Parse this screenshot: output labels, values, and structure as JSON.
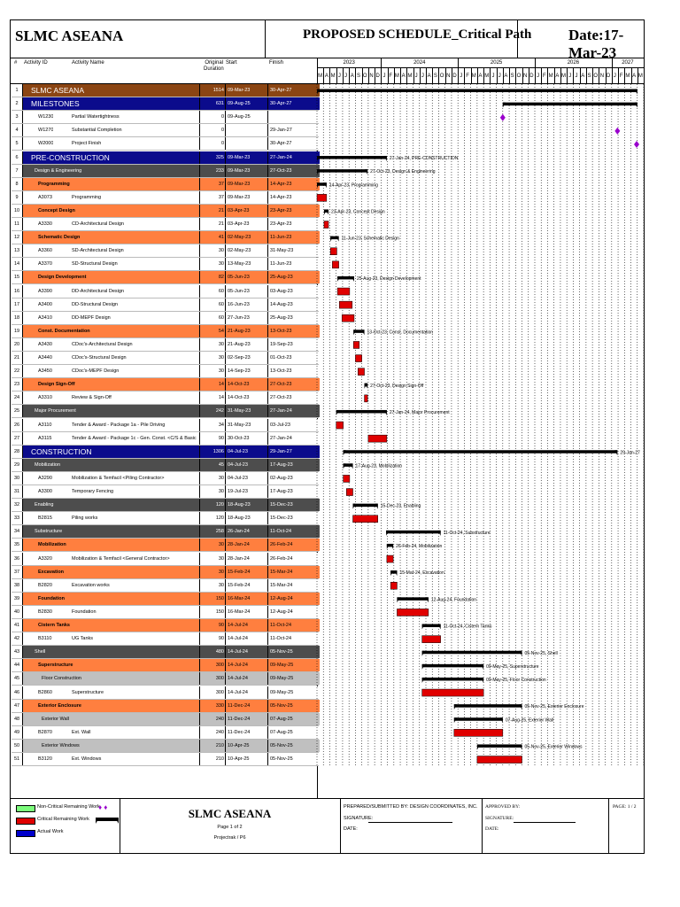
{
  "header": {
    "project": "SLMC ASEANA",
    "title": "PROPOSED SCHEDULE_Critical Path",
    "date": "Date:17-Mar-23"
  },
  "columns": {
    "num": "#",
    "id": "Activity ID",
    "name": "Activity Name",
    "dur": "Original Duration",
    "start": "Start",
    "finish": "Finish"
  },
  "timeline": {
    "years": [
      "2023",
      "2024",
      "2025",
      "2026",
      "2027"
    ],
    "months": [
      "M",
      "A",
      "M",
      "J",
      "J",
      "A",
      "S",
      "O",
      "N",
      "D",
      "J",
      "F",
      "M",
      "A",
      "M",
      "J",
      "J",
      "A",
      "S",
      "O",
      "N",
      "D",
      "J",
      "F",
      "M",
      "A",
      "M",
      "J",
      "J",
      "A",
      "S",
      "O",
      "N",
      "D",
      "J",
      "F",
      "M",
      "A",
      "M",
      "J",
      "J",
      "A",
      "S",
      "O",
      "N",
      "D",
      "J",
      "F",
      "M",
      "A",
      "M"
    ]
  },
  "colors": {
    "project": "#8B4513",
    "wbs1": "#0B0B8C",
    "wbs2": "#4D4D4D",
    "wbs3": "#FF7F3F",
    "wbs4": "#C0C0C0",
    "bar_red": "#E00000",
    "milestone": "#9900CC"
  },
  "rows": [
    {
      "n": "1",
      "id": "",
      "name": "SLMC ASEANA",
      "dur": "1514",
      "start": "09-Mar-23",
      "finish": "30-Apr-27",
      "lvl": "project",
      "type": "summary",
      "s": 0,
      "e": 50,
      "label": ""
    },
    {
      "n": "2",
      "id": "",
      "name": "MILESTONES",
      "dur": "631",
      "start": "09-Aug-25",
      "finish": "30-Apr-27",
      "lvl": "wbs1",
      "type": "summary",
      "s": 29,
      "e": 50,
      "label": ""
    },
    {
      "n": "3",
      "id": "W1230",
      "name": "Partial Watertightness",
      "dur": "0",
      "start": "09-Aug-25",
      "finish": "",
      "lvl": "task",
      "type": "milestone",
      "s": 29,
      "e": 29,
      "label": ""
    },
    {
      "n": "4",
      "id": "W1270",
      "name": "Substantial Completion",
      "dur": "0",
      "start": "",
      "finish": "29-Jan-27",
      "lvl": "task",
      "type": "milestone",
      "s": 46.9,
      "e": 46.9,
      "label": ""
    },
    {
      "n": "5",
      "id": "W2000",
      "name": "Project Finish",
      "dur": "0",
      "start": "",
      "finish": "30-Apr-27",
      "lvl": "task",
      "type": "milestone",
      "s": 49.9,
      "e": 49.9,
      "label": ""
    },
    {
      "n": "6",
      "id": "",
      "name": "PRE-CONSTRUCTION",
      "dur": "325",
      "start": "09-Mar-23",
      "finish": "27-Jan-24",
      "lvl": "wbs1",
      "type": "summary",
      "s": 0,
      "e": 10.9,
      "label": "27-Jan-24, PRE-CONSTRUCTION"
    },
    {
      "n": "7",
      "id": "",
      "name": "Design & Engineering",
      "dur": "233",
      "start": "09-Mar-23",
      "finish": "27-Oct-23",
      "lvl": "wbs2",
      "type": "summary",
      "s": 0,
      "e": 7.9,
      "label": "27-Oct-23, Design & Engineering"
    },
    {
      "n": "8",
      "id": "",
      "name": "Programming",
      "dur": "37",
      "start": "09-Mar-23",
      "finish": "14-Apr-23",
      "lvl": "wbs3",
      "type": "summary",
      "s": 0,
      "e": 1.5,
      "label": "14-Apr-23, Programming"
    },
    {
      "n": "9",
      "id": "A3073",
      "name": "Programming",
      "dur": "37",
      "start": "09-Mar-23",
      "finish": "14-Apr-23",
      "lvl": "task",
      "type": "task",
      "s": 0,
      "e": 1.5,
      "label": ""
    },
    {
      "n": "10",
      "id": "",
      "name": "Concept Design",
      "dur": "21",
      "start": "03-Apr-23",
      "finish": "23-Apr-23",
      "lvl": "wbs3",
      "type": "summary",
      "s": 1.1,
      "e": 1.8,
      "label": "23-Apr-23, Concept Design"
    },
    {
      "n": "11",
      "id": "A3330",
      "name": "CD-Architectural Design",
      "dur": "21",
      "start": "03-Apr-23",
      "finish": "23-Apr-23",
      "lvl": "task",
      "type": "task",
      "s": 1.1,
      "e": 1.8,
      "label": ""
    },
    {
      "n": "12",
      "id": "",
      "name": "Schematic Design",
      "dur": "41",
      "start": "02-May-23",
      "finish": "11-Jun-23",
      "lvl": "wbs3",
      "type": "summary",
      "s": 2.1,
      "e": 3.4,
      "label": "11-Jun-23, Schematic Design"
    },
    {
      "n": "13",
      "id": "A3360",
      "name": "SD-Architectural Design",
      "dur": "30",
      "start": "02-May-23",
      "finish": "31-May-23",
      "lvl": "task",
      "type": "task",
      "s": 2.1,
      "e": 3.1,
      "label": ""
    },
    {
      "n": "14",
      "id": "A3370",
      "name": "SD-Structural Design",
      "dur": "30",
      "start": "13-May-23",
      "finish": "11-Jun-23",
      "lvl": "task",
      "type": "task",
      "s": 2.4,
      "e": 3.4,
      "label": ""
    },
    {
      "n": "15",
      "id": "",
      "name": "Design Development",
      "dur": "82",
      "start": "05-Jun-23",
      "finish": "25-Aug-23",
      "lvl": "wbs3",
      "type": "summary",
      "s": 3.2,
      "e": 5.8,
      "label": "25-Aug-23, Design Development"
    },
    {
      "n": "16",
      "id": "A3390",
      "name": "DD-Architectural Design",
      "dur": "60",
      "start": "05-Jun-23",
      "finish": "03-Aug-23",
      "lvl": "task",
      "type": "task",
      "s": 3.2,
      "e": 5.1,
      "label": ""
    },
    {
      "n": "17",
      "id": "A3400",
      "name": "DD-Structural Design",
      "dur": "60",
      "start": "16-Jun-23",
      "finish": "14-Aug-23",
      "lvl": "task",
      "type": "task",
      "s": 3.5,
      "e": 5.5,
      "label": ""
    },
    {
      "n": "18",
      "id": "A3410",
      "name": "DD-MEPF Design",
      "dur": "60",
      "start": "27-Jun-23",
      "finish": "25-Aug-23",
      "lvl": "task",
      "type": "task",
      "s": 3.9,
      "e": 5.8,
      "label": ""
    },
    {
      "n": "19",
      "id": "",
      "name": "Const. Documentation",
      "dur": "54",
      "start": "21-Aug-23",
      "finish": "13-Oct-23",
      "lvl": "wbs3",
      "type": "summary",
      "s": 5.7,
      "e": 7.4,
      "label": "13-Oct-23, Const. Documentation"
    },
    {
      "n": "20",
      "id": "A3430",
      "name": "CDoc's-Architectural Design",
      "dur": "30",
      "start": "21-Aug-23",
      "finish": "19-Sep-23",
      "lvl": "task",
      "type": "task",
      "s": 5.7,
      "e": 6.6,
      "label": ""
    },
    {
      "n": "21",
      "id": "A3440",
      "name": "CDoc's-Structural Design",
      "dur": "30",
      "start": "02-Sep-23",
      "finish": "01-Oct-23",
      "lvl": "task",
      "type": "task",
      "s": 6.0,
      "e": 7.0,
      "label": ""
    },
    {
      "n": "22",
      "id": "A3450",
      "name": "CDoc's-MEPF Design",
      "dur": "30",
      "start": "14-Sep-23",
      "finish": "13-Oct-23",
      "lvl": "task",
      "type": "task",
      "s": 6.4,
      "e": 7.4,
      "label": ""
    },
    {
      "n": "23",
      "id": "",
      "name": "Design Sign-Off",
      "dur": "14",
      "start": "14-Oct-23",
      "finish": "27-Oct-23",
      "lvl": "wbs3",
      "type": "summary",
      "s": 7.4,
      "e": 7.9,
      "label": "27-Oct-23, Design Sign-Off"
    },
    {
      "n": "24",
      "id": "A3310",
      "name": "Review & Sign-Off",
      "dur": "14",
      "start": "14-Oct-23",
      "finish": "27-Oct-23",
      "lvl": "task",
      "type": "task",
      "s": 7.4,
      "e": 7.9,
      "label": ""
    },
    {
      "n": "25",
      "id": "",
      "name": "Major Procurement",
      "dur": "242",
      "start": "31-May-23",
      "finish": "27-Jan-24",
      "lvl": "wbs2",
      "type": "summary",
      "s": 3.0,
      "e": 10.9,
      "label": "27-Jan-24, Major Procurement"
    },
    {
      "n": "26",
      "id": "A3110",
      "name": "Tender & Award - Package 1a - Pile Driving",
      "dur": "34",
      "start": "31-May-23",
      "finish": "03-Jul-23",
      "lvl": "task",
      "type": "task",
      "s": 3.0,
      "e": 4.1,
      "label": ""
    },
    {
      "n": "27",
      "id": "A3115",
      "name": "Tender & Award - Package 1c - Gen. Const. <C/S & Basic Arch.>",
      "dur": "90",
      "start": "30-Oct-23",
      "finish": "27-Jan-24",
      "lvl": "task",
      "type": "task",
      "s": 8.0,
      "e": 10.9,
      "label": ""
    },
    {
      "n": "28",
      "id": "",
      "name": "CONSTRUCTION",
      "dur": "1306",
      "start": "04-Jul-23",
      "finish": "29-Jan-27",
      "lvl": "wbs1",
      "type": "summary",
      "s": 4.1,
      "e": 46.9,
      "label": "29-Jan-27"
    },
    {
      "n": "29",
      "id": "",
      "name": "Mobilization",
      "dur": "45",
      "start": "04-Jul-23",
      "finish": "17-Aug-23",
      "lvl": "wbs2",
      "type": "summary",
      "s": 4.1,
      "e": 5.6,
      "label": "17-Aug-23, Mobilization"
    },
    {
      "n": "30",
      "id": "A3290",
      "name": "Mobilization & Temfacil <Piling Contractor>",
      "dur": "30",
      "start": "04-Jul-23",
      "finish": "02-Aug-23",
      "lvl": "task",
      "type": "task",
      "s": 4.1,
      "e": 5.1,
      "label": ""
    },
    {
      "n": "31",
      "id": "A3300",
      "name": "Temporary Fencing",
      "dur": "30",
      "start": "19-Jul-23",
      "finish": "17-Aug-23",
      "lvl": "task",
      "type": "task",
      "s": 4.6,
      "e": 5.6,
      "label": ""
    },
    {
      "n": "32",
      "id": "",
      "name": "Enabling",
      "dur": "120",
      "start": "18-Aug-23",
      "finish": "15-Dec-23",
      "lvl": "wbs2",
      "type": "summary",
      "s": 5.6,
      "e": 9.5,
      "label": "15-Dec-23, Enabling"
    },
    {
      "n": "33",
      "id": "B2815",
      "name": "Piling works",
      "dur": "120",
      "start": "18-Aug-23",
      "finish": "15-Dec-23",
      "lvl": "task",
      "type": "task",
      "s": 5.6,
      "e": 9.5,
      "label": ""
    },
    {
      "n": "34",
      "id": "",
      "name": "Substructure",
      "dur": "258",
      "start": "26-Jan-24",
      "finish": "11-Oct-24",
      "lvl": "wbs2",
      "type": "summary",
      "s": 10.8,
      "e": 19.3,
      "label": "11-Oct-24, Substructure"
    },
    {
      "n": "35",
      "id": "",
      "name": "Mobilization",
      "dur": "30",
      "start": "28-Jan-24",
      "finish": "26-Feb-24",
      "lvl": "wbs3",
      "type": "summary",
      "s": 10.9,
      "e": 11.9,
      "label": "26-Feb-24, Mobilization"
    },
    {
      "n": "36",
      "id": "A3320",
      "name": "Mobilization & Temfacil <General Contractor>",
      "dur": "30",
      "start": "28-Jan-24",
      "finish": "26-Feb-24",
      "lvl": "task",
      "type": "task",
      "s": 10.9,
      "e": 11.9,
      "label": ""
    },
    {
      "n": "37",
      "id": "",
      "name": "Excavation",
      "dur": "30",
      "start": "15-Feb-24",
      "finish": "15-Mar-24",
      "lvl": "wbs3",
      "type": "summary",
      "s": 11.5,
      "e": 12.5,
      "label": "15-Mar-24, Excavation"
    },
    {
      "n": "38",
      "id": "B2820",
      "name": "Excavation works",
      "dur": "30",
      "start": "15-Feb-24",
      "finish": "15-Mar-24",
      "lvl": "task",
      "type": "task",
      "s": 11.5,
      "e": 12.5,
      "label": ""
    },
    {
      "n": "39",
      "id": "",
      "name": "Foundation",
      "dur": "150",
      "start": "16-Mar-24",
      "finish": "12-Aug-24",
      "lvl": "wbs3",
      "type": "summary",
      "s": 12.5,
      "e": 17.4,
      "label": "12-Aug-24, Foundation"
    },
    {
      "n": "40",
      "id": "B2830",
      "name": "Foundation",
      "dur": "150",
      "start": "16-Mar-24",
      "finish": "12-Aug-24",
      "lvl": "task",
      "type": "task",
      "s": 12.5,
      "e": 17.4,
      "label": ""
    },
    {
      "n": "41",
      "id": "",
      "name": "Cistern Tanks",
      "dur": "90",
      "start": "14-Jul-24",
      "finish": "11-Oct-24",
      "lvl": "wbs3",
      "type": "summary",
      "s": 16.4,
      "e": 19.3,
      "label": "11-Oct-24, Cistern Tanks"
    },
    {
      "n": "42",
      "id": "B3110",
      "name": "UG Tanks",
      "dur": "90",
      "start": "14-Jul-24",
      "finish": "11-Oct-24",
      "lvl": "task",
      "type": "task",
      "s": 16.4,
      "e": 19.3,
      "label": ""
    },
    {
      "n": "43",
      "id": "",
      "name": "Shell",
      "dur": "480",
      "start": "14-Jul-24",
      "finish": "05-Nov-25",
      "lvl": "wbs2",
      "type": "summary",
      "s": 16.4,
      "e": 32.0,
      "label": "05-Nov-25, Shell"
    },
    {
      "n": "44",
      "id": "",
      "name": "Superstructure",
      "dur": "300",
      "start": "14-Jul-24",
      "finish": "09-May-25",
      "lvl": "wbs3",
      "type": "summary",
      "s": 16.4,
      "e": 26.0,
      "label": "09-May-25, Superstructure"
    },
    {
      "n": "45",
      "id": "",
      "name": "Floor Construction",
      "dur": "300",
      "start": "14-Jul-24",
      "finish": "09-May-25",
      "lvl": "wbs4",
      "type": "summary",
      "s": 16.4,
      "e": 26.0,
      "label": "09-May-25, Floor Construction"
    },
    {
      "n": "46",
      "id": "B2860",
      "name": "Superstructure",
      "dur": "300",
      "start": "14-Jul-24",
      "finish": "09-May-25",
      "lvl": "task",
      "type": "task",
      "s": 16.4,
      "e": 26.0,
      "label": ""
    },
    {
      "n": "47",
      "id": "",
      "name": "Exterior Enclosure",
      "dur": "330",
      "start": "11-Dec-24",
      "finish": "05-Nov-25",
      "lvl": "wbs3",
      "type": "summary",
      "s": 21.4,
      "e": 32.0,
      "label": "05-Nov-25, Exterior Enclosure"
    },
    {
      "n": "48",
      "id": "",
      "name": "Exterior Wall",
      "dur": "240",
      "start": "11-Dec-24",
      "finish": "07-Aug-25",
      "lvl": "wbs4",
      "type": "summary",
      "s": 21.4,
      "e": 29.0,
      "label": "07-Aug-25, Exterior Wall"
    },
    {
      "n": "49",
      "id": "B2870",
      "name": "Ext. Wall",
      "dur": "240",
      "start": "11-Dec-24",
      "finish": "07-Aug-25",
      "lvl": "task",
      "type": "task",
      "s": 21.4,
      "e": 29.0,
      "label": ""
    },
    {
      "n": "50",
      "id": "",
      "name": "Exterior Windows",
      "dur": "210",
      "start": "10-Apr-25",
      "finish": "05-Nov-25",
      "lvl": "wbs4",
      "type": "summary",
      "s": 25.0,
      "e": 32.0,
      "label": "05-Nov-25, Exterior Windows"
    },
    {
      "n": "51",
      "id": "B3120",
      "name": "Ext. Windows",
      "dur": "210",
      "start": "10-Apr-25",
      "finish": "05-Nov-25",
      "lvl": "task",
      "type": "task",
      "s": 25.0,
      "e": 32.0,
      "label": ""
    }
  ],
  "legend": {
    "item1": "Non-Critical Remaining Work",
    "item2": "Critical Remaining Work",
    "item3": "Actual Work"
  },
  "footer": {
    "project": "SLMC ASEANA",
    "page": "Page 1 of 2",
    "software": "Projectrak / P6",
    "prepared": "PREPARED/SUBMITTED BY: DESIGN COORDINATES, INC.",
    "signature": "SIGNATURE:",
    "date": "DATE:",
    "approved": "APPROVED BY:",
    "approved_signature": "SIGNATURE:",
    "approved_date": "DATE:",
    "page_no": "PAGE: 1 / 2"
  }
}
